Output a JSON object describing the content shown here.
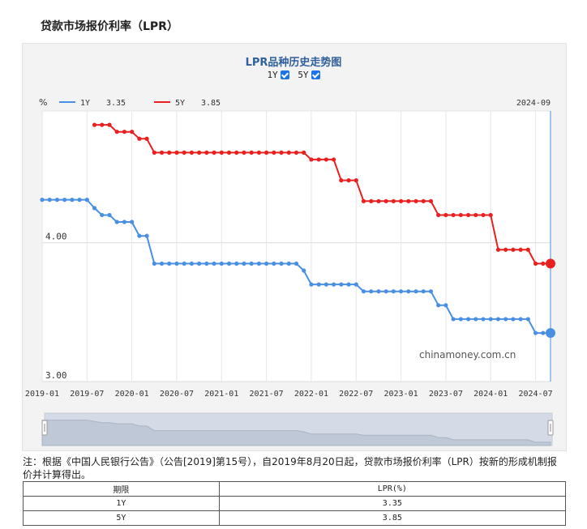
{
  "page": {
    "title": "贷款市场报价利率（LPR）",
    "note": "注：根据《中国人民银行公告》（公告[2019]第15号），自2019年8月20日起，贷款市场报价利率（LPR）按新的形成机制报价并计算得出。"
  },
  "toggles": [
    {
      "label": "1Y",
      "checked": true
    },
    {
      "label": "5Y",
      "checked": true
    }
  ],
  "table": {
    "headers": [
      "期限",
      "LPR(%)"
    ],
    "rows": [
      {
        "term": "1Y",
        "rate": "3.35"
      },
      {
        "term": "5Y",
        "rate": "3.85"
      }
    ]
  },
  "chart_data": {
    "type": "line",
    "title": "LPR品种历史走势图",
    "unit_label": "%",
    "watermark": "chinamoney.com.cn",
    "current_month": "2024-09",
    "x_labels": [
      "2019-01",
      "2019-07",
      "2020-01",
      "2020-07",
      "2021-01",
      "2021-07",
      "2022-01",
      "2022-07",
      "2023-01",
      "2023-07",
      "2024-01",
      "2024-07"
    ],
    "y_ticks": [
      "3.00",
      "4.00"
    ],
    "ylim": [
      3.0,
      4.95
    ],
    "legend_position": "top-left",
    "grid": true,
    "series": [
      {
        "name": "1Y",
        "color": "#4a90e2",
        "legend_value": "3.35",
        "points": [
          [
            "2019-01",
            4.31
          ],
          [
            "2019-02",
            4.31
          ],
          [
            "2019-03",
            4.31
          ],
          [
            "2019-04",
            4.31
          ],
          [
            "2019-05",
            4.31
          ],
          [
            "2019-06",
            4.31
          ],
          [
            "2019-07",
            4.31
          ],
          [
            "2019-08",
            4.25
          ],
          [
            "2019-09",
            4.2
          ],
          [
            "2019-10",
            4.2
          ],
          [
            "2019-11",
            4.15
          ],
          [
            "2019-12",
            4.15
          ],
          [
            "2020-01",
            4.15
          ],
          [
            "2020-02",
            4.05
          ],
          [
            "2020-03",
            4.05
          ],
          [
            "2020-04",
            3.85
          ],
          [
            "2020-05",
            3.85
          ],
          [
            "2020-06",
            3.85
          ],
          [
            "2020-07",
            3.85
          ],
          [
            "2020-08",
            3.85
          ],
          [
            "2020-09",
            3.85
          ],
          [
            "2020-10",
            3.85
          ],
          [
            "2020-11",
            3.85
          ],
          [
            "2020-12",
            3.85
          ],
          [
            "2021-01",
            3.85
          ],
          [
            "2021-02",
            3.85
          ],
          [
            "2021-03",
            3.85
          ],
          [
            "2021-04",
            3.85
          ],
          [
            "2021-05",
            3.85
          ],
          [
            "2021-06",
            3.85
          ],
          [
            "2021-07",
            3.85
          ],
          [
            "2021-08",
            3.85
          ],
          [
            "2021-09",
            3.85
          ],
          [
            "2021-10",
            3.85
          ],
          [
            "2021-11",
            3.85
          ],
          [
            "2021-12",
            3.8
          ],
          [
            "2022-01",
            3.7
          ],
          [
            "2022-02",
            3.7
          ],
          [
            "2022-03",
            3.7
          ],
          [
            "2022-04",
            3.7
          ],
          [
            "2022-05",
            3.7
          ],
          [
            "2022-06",
            3.7
          ],
          [
            "2022-07",
            3.7
          ],
          [
            "2022-08",
            3.65
          ],
          [
            "2022-09",
            3.65
          ],
          [
            "2022-10",
            3.65
          ],
          [
            "2022-11",
            3.65
          ],
          [
            "2022-12",
            3.65
          ],
          [
            "2023-01",
            3.65
          ],
          [
            "2023-02",
            3.65
          ],
          [
            "2023-03",
            3.65
          ],
          [
            "2023-04",
            3.65
          ],
          [
            "2023-05",
            3.65
          ],
          [
            "2023-06",
            3.55
          ],
          [
            "2023-07",
            3.55
          ],
          [
            "2023-08",
            3.45
          ],
          [
            "2023-09",
            3.45
          ],
          [
            "2023-10",
            3.45
          ],
          [
            "2023-11",
            3.45
          ],
          [
            "2023-12",
            3.45
          ],
          [
            "2024-01",
            3.45
          ],
          [
            "2024-02",
            3.45
          ],
          [
            "2024-03",
            3.45
          ],
          [
            "2024-04",
            3.45
          ],
          [
            "2024-05",
            3.45
          ],
          [
            "2024-06",
            3.45
          ],
          [
            "2024-07",
            3.35
          ],
          [
            "2024-08",
            3.35
          ],
          [
            "2024-09",
            3.35
          ]
        ]
      },
      {
        "name": "5Y",
        "color": "#e82020",
        "legend_value": "3.85",
        "points": [
          [
            "2019-08",
            4.85
          ],
          [
            "2019-09",
            4.85
          ],
          [
            "2019-10",
            4.85
          ],
          [
            "2019-11",
            4.8
          ],
          [
            "2019-12",
            4.8
          ],
          [
            "2020-01",
            4.8
          ],
          [
            "2020-02",
            4.75
          ],
          [
            "2020-03",
            4.75
          ],
          [
            "2020-04",
            4.65
          ],
          [
            "2020-05",
            4.65
          ],
          [
            "2020-06",
            4.65
          ],
          [
            "2020-07",
            4.65
          ],
          [
            "2020-08",
            4.65
          ],
          [
            "2020-09",
            4.65
          ],
          [
            "2020-10",
            4.65
          ],
          [
            "2020-11",
            4.65
          ],
          [
            "2020-12",
            4.65
          ],
          [
            "2021-01",
            4.65
          ],
          [
            "2021-02",
            4.65
          ],
          [
            "2021-03",
            4.65
          ],
          [
            "2021-04",
            4.65
          ],
          [
            "2021-05",
            4.65
          ],
          [
            "2021-06",
            4.65
          ],
          [
            "2021-07",
            4.65
          ],
          [
            "2021-08",
            4.65
          ],
          [
            "2021-09",
            4.65
          ],
          [
            "2021-10",
            4.65
          ],
          [
            "2021-11",
            4.65
          ],
          [
            "2021-12",
            4.65
          ],
          [
            "2022-01",
            4.6
          ],
          [
            "2022-02",
            4.6
          ],
          [
            "2022-03",
            4.6
          ],
          [
            "2022-04",
            4.6
          ],
          [
            "2022-05",
            4.45
          ],
          [
            "2022-06",
            4.45
          ],
          [
            "2022-07",
            4.45
          ],
          [
            "2022-08",
            4.3
          ],
          [
            "2022-09",
            4.3
          ],
          [
            "2022-10",
            4.3
          ],
          [
            "2022-11",
            4.3
          ],
          [
            "2022-12",
            4.3
          ],
          [
            "2023-01",
            4.3
          ],
          [
            "2023-02",
            4.3
          ],
          [
            "2023-03",
            4.3
          ],
          [
            "2023-04",
            4.3
          ],
          [
            "2023-05",
            4.3
          ],
          [
            "2023-06",
            4.2
          ],
          [
            "2023-07",
            4.2
          ],
          [
            "2023-08",
            4.2
          ],
          [
            "2023-09",
            4.2
          ],
          [
            "2023-10",
            4.2
          ],
          [
            "2023-11",
            4.2
          ],
          [
            "2023-12",
            4.2
          ],
          [
            "2024-01",
            4.2
          ],
          [
            "2024-02",
            3.95
          ],
          [
            "2024-03",
            3.95
          ],
          [
            "2024-04",
            3.95
          ],
          [
            "2024-05",
            3.95
          ],
          [
            "2024-06",
            3.95
          ],
          [
            "2024-07",
            3.85
          ],
          [
            "2024-08",
            3.85
          ],
          [
            "2024-09",
            3.85
          ]
        ]
      }
    ]
  }
}
